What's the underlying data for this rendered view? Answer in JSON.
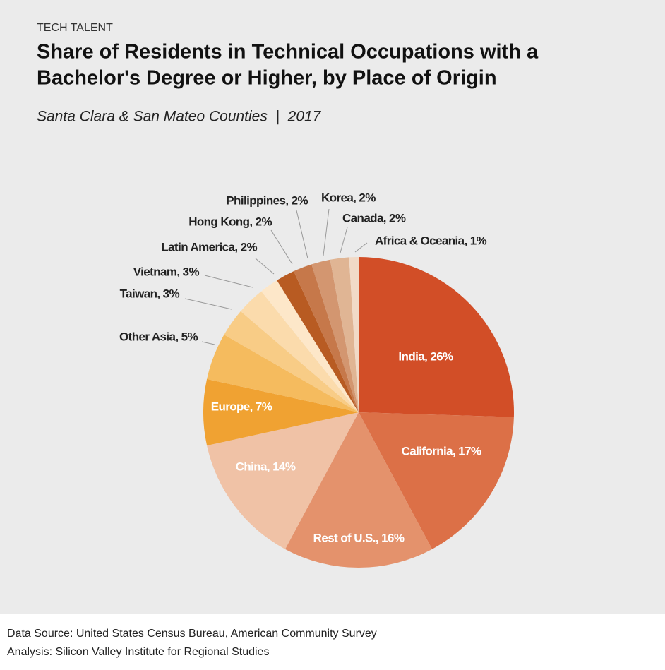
{
  "header": {
    "kicker": "TECH TALENT",
    "title_lines": [
      "Share of Residents in Technical Occupations with a",
      "Bachelor's Degree or Higher, by Place of Origin"
    ],
    "subtitle": "Santa Clara & San Mateo Counties  |  2017"
  },
  "chart_data": {
    "type": "pie",
    "values": [
      26,
      17,
      16,
      14,
      7,
      5,
      3,
      3,
      2,
      2,
      2,
      2,
      2,
      1
    ],
    "value_labels": [
      "India, 26%",
      "California, 17%",
      "Rest of U.S., 16%",
      "China, 14%",
      "Europe, 7%",
      "Other Asia, 5%",
      "Taiwan, 3%",
      "Vietnam, 3%",
      "Latin America, 2%",
      "Hong Kong, 2%",
      "Philippines, 2%",
      "Korea, 2%",
      "Canada, 2%",
      "Africa & Oceania, 1%"
    ],
    "colors": [
      "#d24e27",
      "#dc7047",
      "#e4926c",
      "#f0c2a6",
      "#f0a232",
      "#f5bb5e",
      "#f8cc86",
      "#fbdbac",
      "#fde7c9",
      "#b85b22",
      "#c6784a",
      "#d39670",
      "#e0b594",
      "#f1dac7"
    ]
  },
  "footer": {
    "lines": [
      "Data Source: United States Census Bureau, American Community Survey",
      "Analysis: Silicon Valley Institute for Regional Studies"
    ]
  }
}
